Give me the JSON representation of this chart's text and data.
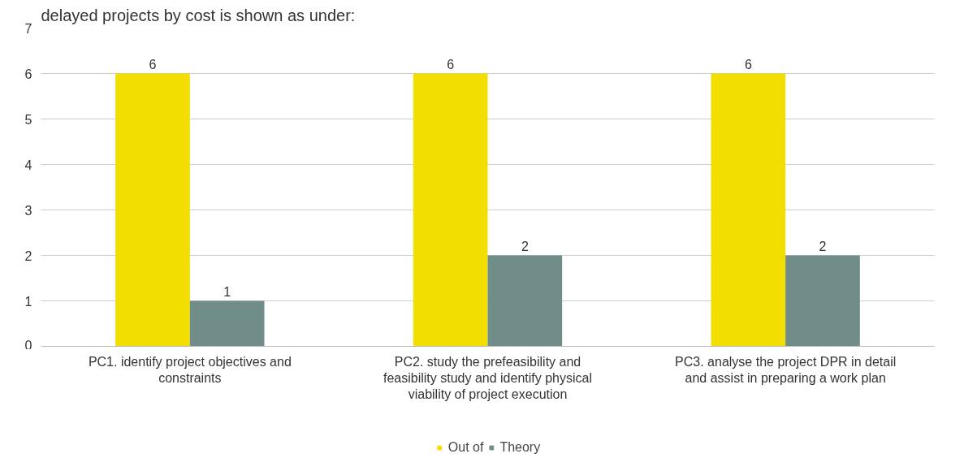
{
  "chart_data": {
    "type": "bar",
    "annotations": [
      "delayed projects by cost is shown as under:"
    ],
    "categories": [
      "PC1. identify project objectives and constraints",
      "PC2. study the prefeasibility and feasibility study and identify physical viability of project execution",
      "PC3. analyse the project DPR in detail and assist in preparing a work plan"
    ],
    "series": [
      {
        "name": "Out of",
        "color": "#f2de00",
        "values": [
          6,
          6,
          6
        ]
      },
      {
        "name": "Theory",
        "color": "#718d89",
        "values": [
          1,
          2,
          2
        ]
      }
    ],
    "ylim": [
      0,
      7
    ],
    "yticks": [
      0,
      1,
      2,
      3,
      4,
      5,
      6,
      7
    ],
    "grid": "y",
    "legend": "bottom",
    "data_labels": true
  }
}
